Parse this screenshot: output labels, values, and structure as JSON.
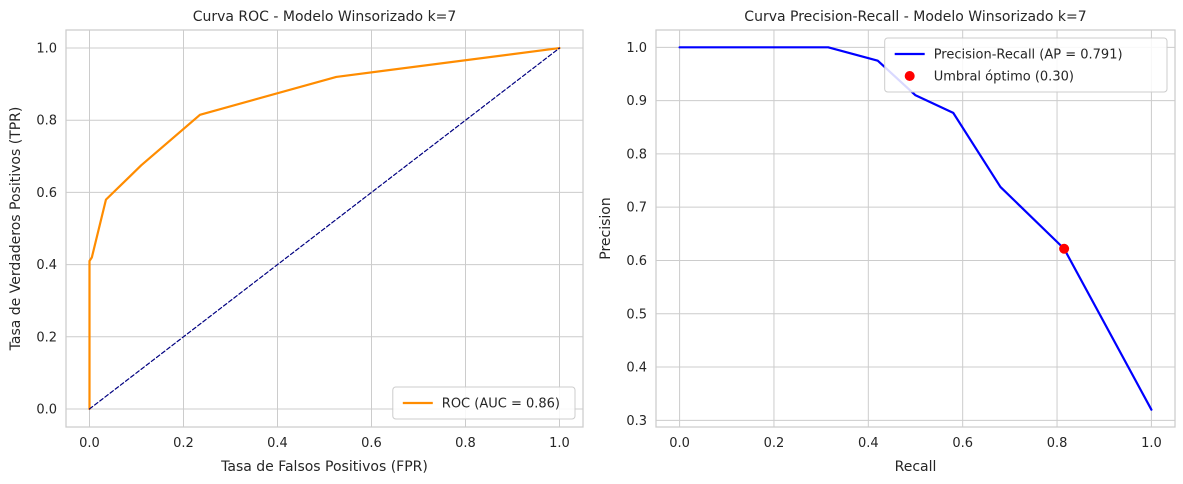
{
  "chart_data": [
    {
      "type": "line",
      "title": "Curva ROC - Modelo Winsorizado k=7",
      "xlabel": "Tasa de Falsos Positivos (FPR)",
      "ylabel": "Tasa de Verdaderos Positivos (TPR)",
      "xlim": [
        -0.05,
        1.05
      ],
      "ylim": [
        -0.05,
        1.05
      ],
      "xticks": [
        0.0,
        0.2,
        0.4,
        0.6,
        0.8,
        1.0
      ],
      "yticks": [
        0.0,
        0.2,
        0.4,
        0.6,
        0.8,
        1.0
      ],
      "xtick_labels": [
        "0.0",
        "0.2",
        "0.4",
        "0.6",
        "0.8",
        "1.0"
      ],
      "ytick_labels": [
        "0.0",
        "0.2",
        "0.4",
        "0.6",
        "0.8",
        "1.0"
      ],
      "grid": true,
      "legend_position": "lower-right",
      "series": [
        {
          "name": "ROC (AUC = 0.86)",
          "color": "#ff8c00",
          "style": "solid",
          "x": [
            0.0,
            0.0,
            0.0,
            0.005,
            0.035,
            0.11,
            0.235,
            0.525,
            1.0
          ],
          "y": [
            0.0,
            0.32,
            0.41,
            0.42,
            0.58,
            0.675,
            0.815,
            0.92,
            1.0
          ]
        },
        {
          "name": "",
          "color": "#000080",
          "style": "dashed",
          "x": [
            0.0,
            1.0
          ],
          "y": [
            0.0,
            1.0
          ]
        }
      ]
    },
    {
      "type": "line",
      "title": "Curva Precision-Recall - Modelo Winsorizado k=7",
      "xlabel": "Recall",
      "ylabel": "Precision",
      "xlim": [
        -0.05,
        1.05
      ],
      "ylim": [
        0.2875,
        1.0325
      ],
      "xticks": [
        0.0,
        0.2,
        0.4,
        0.6,
        0.8,
        1.0
      ],
      "yticks": [
        0.3,
        0.4,
        0.5,
        0.6,
        0.7,
        0.8,
        0.9,
        1.0
      ],
      "xtick_labels": [
        "0.0",
        "0.2",
        "0.4",
        "0.6",
        "0.8",
        "1.0"
      ],
      "ytick_labels": [
        "0.3",
        "0.4",
        "0.5",
        "0.6",
        "0.7",
        "0.8",
        "0.9",
        "1.0"
      ],
      "grid": true,
      "legend_position": "upper-right",
      "series": [
        {
          "name": "Precision-Recall (AP = 0.791)",
          "color": "#0000ff",
          "style": "solid",
          "x": [
            0.0,
            0.315,
            0.42,
            0.5,
            0.58,
            0.68,
            0.815,
            1.0
          ],
          "y": [
            1.0,
            1.0,
            0.975,
            0.91,
            0.877,
            0.738,
            0.622,
            0.32
          ]
        }
      ],
      "points": [
        {
          "name": "Umbral óptimo (0.30)",
          "color": "#ff0000",
          "x": 0.815,
          "y": 0.622
        }
      ]
    }
  ]
}
